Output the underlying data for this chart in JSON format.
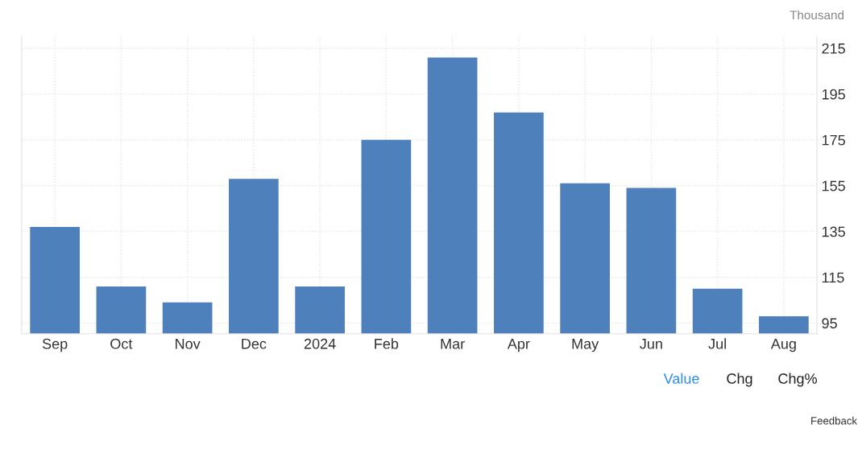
{
  "chart_data": {
    "type": "bar",
    "ylabel": "Thousand",
    "categories": [
      "Sep",
      "Oct",
      "Nov",
      "Dec",
      "2024",
      "Feb",
      "Mar",
      "Apr",
      "May",
      "Jun",
      "Jul",
      "Aug"
    ],
    "values": [
      137,
      111,
      104,
      158,
      111,
      175,
      211,
      187,
      156,
      154,
      110,
      98
    ],
    "color": "#4e80bc",
    "ylim": [
      90.3,
      220.2
    ],
    "yticks": [
      95,
      115,
      135,
      155,
      175,
      195,
      215
    ],
    "grid": true,
    "annotations": [
      "Value",
      "Chg",
      "Chg%",
      "Feedback"
    ]
  }
}
